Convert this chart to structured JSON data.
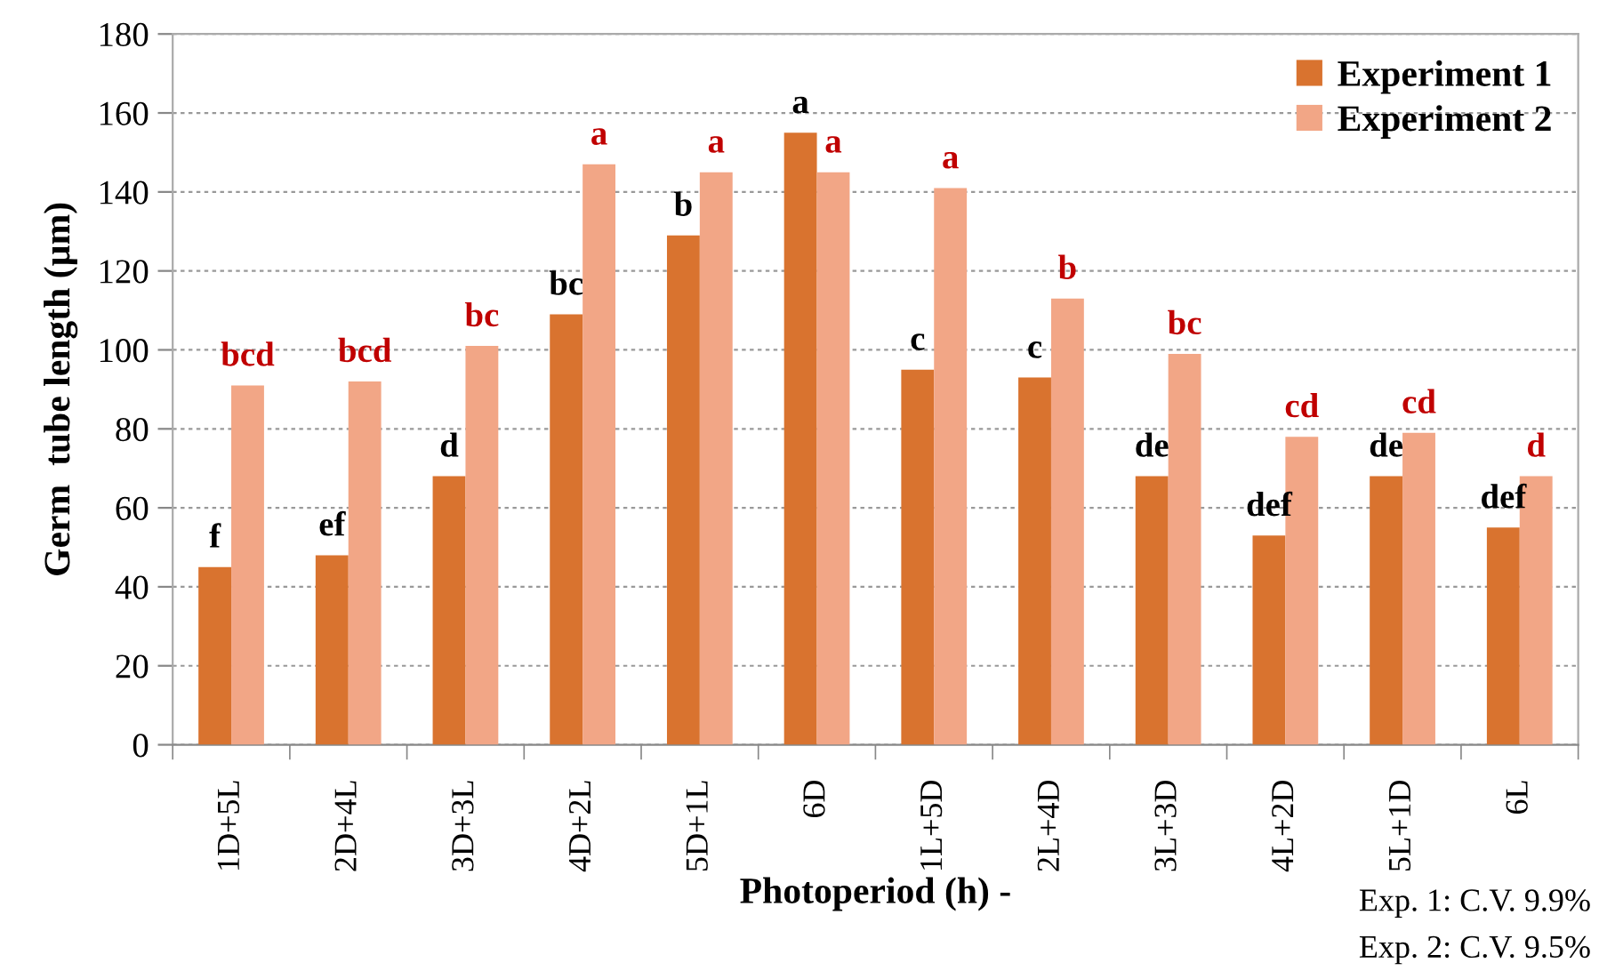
{
  "chart_data": {
    "type": "bar",
    "categories": [
      "1D+5L",
      "2D+4L",
      "3D+3L",
      "4D+2L",
      "5D+1L",
      "6D",
      "1L+5D",
      "2L+4D",
      "3L+3D",
      "4L+2D",
      "5L+1D",
      "6L"
    ],
    "series": [
      {
        "name": "Experiment 1",
        "color": "#d9732f",
        "values": [
          45,
          48,
          68,
          109,
          129,
          155,
          95,
          93,
          68,
          53,
          68,
          55
        ],
        "value_labels": [
          "f",
          "ef",
          "d",
          "bc",
          "b",
          "a",
          "c",
          "c",
          "de",
          "def",
          "de",
          "def"
        ]
      },
      {
        "name": "Experiment 2",
        "color": "#f2a686",
        "values": [
          91,
          92,
          101,
          147,
          145,
          145,
          141,
          113,
          99,
          78,
          79,
          68
        ],
        "value_labels": [
          "bcd",
          "bcd",
          "bc",
          "a",
          "a",
          "a",
          "a",
          "b",
          "bc",
          "cd",
          "cd",
          "d"
        ]
      }
    ],
    "xlabel": "Photoperiod (h) -",
    "ylabel": "Germ  tube length (µm)",
    "ylim": [
      0,
      180
    ],
    "yticks": [
      0,
      20,
      40,
      60,
      80,
      100,
      120,
      140,
      160,
      180
    ],
    "grid": "y",
    "legend": "top right",
    "annotations": [
      "Exp. 1: C.V. 9.9%",
      "Exp. 2: C.V. 9.5%"
    ]
  }
}
